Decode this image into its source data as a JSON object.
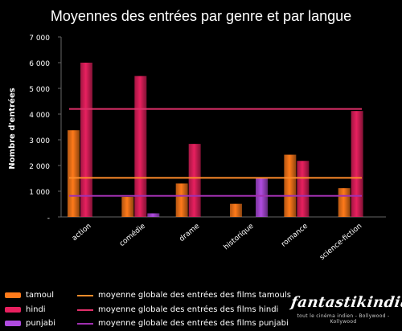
{
  "chart_data": {
    "type": "bar",
    "title": "Moyennes des entrées par genre et par langue",
    "ylabel": "Nombre d'entrées",
    "ylim": [
      0,
      7000
    ],
    "yticks": [
      {
        "value": 0,
        "label": "-"
      },
      {
        "value": 1000,
        "label": "1 000"
      },
      {
        "value": 2000,
        "label": "2 000"
      },
      {
        "value": 3000,
        "label": "3 000"
      },
      {
        "value": 4000,
        "label": "4 000"
      },
      {
        "value": 5000,
        "label": "5 000"
      },
      {
        "value": 6000,
        "label": "6 000"
      },
      {
        "value": 7000,
        "label": "7 000"
      }
    ],
    "categories": [
      "action",
      "comédie",
      "drame",
      "historique",
      "romance",
      "science-fiction"
    ],
    "series": [
      {
        "name": "tamoul",
        "color": "#ff7a1a",
        "values": [
          3370,
          780,
          1300,
          510,
          2420,
          1120
        ]
      },
      {
        "name": "hindi",
        "color": "#e8205f",
        "values": [
          6000,
          5480,
          2840,
          0,
          2180,
          4120
        ]
      },
      {
        "name": "punjabi",
        "color": "#b04be0",
        "values": [
          0,
          140,
          0,
          1500,
          0,
          0
        ]
      }
    ],
    "reference_lines": [
      {
        "name": "moyenne globale des entrées des films tamouls",
        "color": "#ff8c2a",
        "value": 1520
      },
      {
        "name": "moyenne globale des entrées des films hindi",
        "color": "#e0306a",
        "value": 4200
      },
      {
        "name": "moyenne globale des entrées des films punjabi",
        "color": "#a030b0",
        "value": 820
      }
    ],
    "grid": false,
    "legend": "bottom"
  },
  "logo": {
    "main": "fantastikindia",
    "tagline": "tout le cinéma indien - Bollywood - Kollywood"
  }
}
